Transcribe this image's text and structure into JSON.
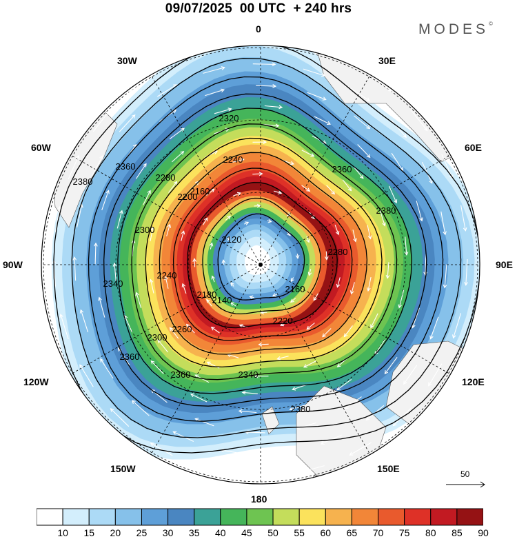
{
  "title": "09/07/2025  00 UTC  + 240 hrs",
  "brand": {
    "name": "MODES",
    "mark": "©"
  },
  "map": {
    "projection": "polar-stereographic-south",
    "longitude_labels": {
      "lon_0": "0",
      "lon_30e": "30E",
      "lon_60e": "60E",
      "lon_90e": "90E",
      "lon_120e": "120E",
      "lon_150e": "150E",
      "lon_180": "180",
      "lon_150w": "150W",
      "lon_120w": "120W",
      "lon_90w": "90W",
      "lon_60w": "60W",
      "lon_30w": "30W"
    },
    "contour_labels": [
      "2120",
      "2140",
      "2160",
      "2180",
      "2200",
      "2220",
      "2240",
      "2260",
      "2280",
      "2300",
      "2320",
      "2340",
      "2360",
      "2380"
    ],
    "vector_reference": {
      "value": "50"
    },
    "colors": {
      "land": "#f2f2f2",
      "contour": "#000000",
      "streamline": "#ffffff"
    }
  },
  "colorbar": {
    "tick_labels": [
      "10",
      "15",
      "20",
      "25",
      "30",
      "35",
      "40",
      "45",
      "50",
      "55",
      "60",
      "65",
      "70",
      "75",
      "80",
      "85",
      "90"
    ],
    "colors": [
      "#ffffff",
      "#d3eefc",
      "#acdaf6",
      "#86c1ea",
      "#5e9fd8",
      "#4a86c1",
      "#3ba297",
      "#45b55a",
      "#6ec451",
      "#c4dd5b",
      "#fbe25c",
      "#f6b24e",
      "#f28638",
      "#e95a2d",
      "#de3127",
      "#c21a22",
      "#951214"
    ]
  }
}
